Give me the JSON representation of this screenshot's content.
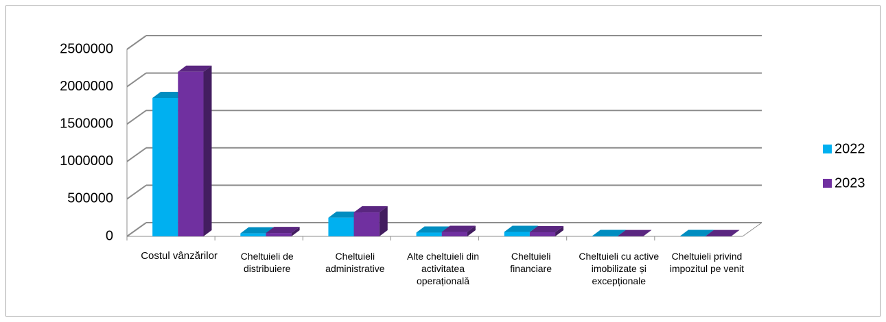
{
  "chart_data": {
    "type": "bar3d",
    "categories": [
      "Costul vânzărilor",
      "Cheltuieli de distribuiere",
      "Cheltuieli administrative",
      "Alte cheltuieli din activitatea operațională",
      "Cheltuieli financiare",
      "Cheltuieli cu active imobilizate și excepționale",
      "Cheltuieli privind impozitul pe venit"
    ],
    "series": [
      {
        "name": "2022",
        "color": "#00b0f0",
        "values": [
          1850000,
          40000,
          250000,
          50000,
          60000,
          5000,
          5000
        ]
      },
      {
        "name": "2023",
        "color": "#7030a0",
        "values": [
          2200000,
          45000,
          320000,
          60000,
          55000,
          3000,
          4000
        ]
      }
    ],
    "ylim": [
      0,
      2500000
    ],
    "yticks": [
      0,
      500000,
      1000000,
      1500000,
      2000000,
      2500000
    ],
    "grid": true,
    "legend": "right"
  }
}
